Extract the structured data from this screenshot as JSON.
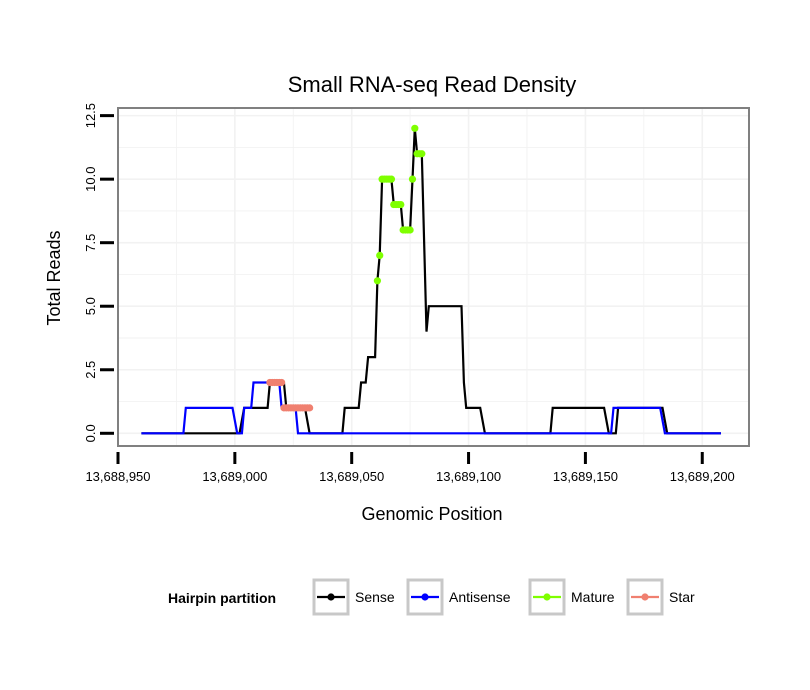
{
  "chart_data": {
    "type": "line",
    "title": "Small RNA-seq Read Density",
    "xlabel": "Genomic Position",
    "ylabel": "Total Reads",
    "xlim": [
      13688950,
      13689220
    ],
    "ylim": [
      -0.5,
      12.8
    ],
    "x_ticks": [
      13688950,
      13689000,
      13689050,
      13689100,
      13689150,
      13689200
    ],
    "x_tick_labels": [
      "13,688,950",
      "13,689,000",
      "13,689,050",
      "13,689,100",
      "13,689,150",
      "13,689,200"
    ],
    "y_ticks": [
      0,
      2.5,
      5,
      7.5,
      10,
      12.5
    ],
    "y_tick_labels": [
      "0.0",
      "2.5",
      "5.0",
      "7.5",
      "10.0",
      "12.5"
    ],
    "grid": true,
    "legend_position": "bottom",
    "legend_title": "Hairpin partition",
    "colors": {
      "Sense": "#000000",
      "Antisense": "#0000ff",
      "Mature": "#7fff00",
      "Star": "#f08070",
      "panel_border": "#808080",
      "grid": "#f2f2f2"
    },
    "series": [
      {
        "name": "Sense",
        "kind": "line",
        "points": [
          [
            13688960,
            0
          ],
          [
            13689002,
            0
          ],
          [
            13689004,
            1
          ],
          [
            13689014,
            1
          ],
          [
            13689015,
            2
          ],
          [
            13689021,
            2
          ],
          [
            13689022,
            1
          ],
          [
            13689030,
            1
          ],
          [
            13689032,
            0
          ],
          [
            13689046,
            0
          ],
          [
            13689047,
            1
          ],
          [
            13689053,
            1
          ],
          [
            13689054,
            2
          ],
          [
            13689056,
            2
          ],
          [
            13689057,
            3
          ],
          [
            13689060,
            3
          ],
          [
            13689061,
            6
          ],
          [
            13689062,
            7
          ],
          [
            13689063,
            10
          ],
          [
            13689067,
            10
          ],
          [
            13689068,
            9
          ],
          [
            13689071,
            9
          ],
          [
            13689072,
            8
          ],
          [
            13689075,
            8
          ],
          [
            13689076,
            10
          ],
          [
            13689077,
            12
          ],
          [
            13689078,
            11
          ],
          [
            13689080,
            11
          ],
          [
            13689082,
            4
          ],
          [
            13689083,
            5
          ],
          [
            13689097,
            5
          ],
          [
            13689098,
            2
          ],
          [
            13689099,
            1
          ],
          [
            13689105,
            1
          ],
          [
            13689107,
            0
          ],
          [
            13689135,
            0
          ],
          [
            13689136,
            1
          ],
          [
            13689158,
            1
          ],
          [
            13689160,
            0
          ],
          [
            13689163,
            0
          ],
          [
            13689164,
            1
          ],
          [
            13689183,
            1
          ],
          [
            13689185,
            0
          ],
          [
            13689208,
            0
          ]
        ]
      },
      {
        "name": "Antisense",
        "kind": "line",
        "points": [
          [
            13688960,
            0
          ],
          [
            13688978,
            0
          ],
          [
            13688979,
            1
          ],
          [
            13688999,
            1
          ],
          [
            13689001,
            0
          ],
          [
            13689003,
            0
          ],
          [
            13689004,
            1
          ],
          [
            13689007,
            1
          ],
          [
            13689008,
            2
          ],
          [
            13689019,
            2
          ],
          [
            13689020,
            1
          ],
          [
            13689026,
            1
          ],
          [
            13689027,
            0
          ],
          [
            13689161,
            0
          ],
          [
            13689162,
            1
          ],
          [
            13689182,
            1
          ],
          [
            13689184,
            0
          ],
          [
            13689208,
            0
          ]
        ]
      },
      {
        "name": "Mature",
        "kind": "points",
        "points": [
          [
            13689061,
            6
          ],
          [
            13689062,
            7
          ],
          [
            13689063,
            10
          ],
          [
            13689064,
            10
          ],
          [
            13689065,
            10
          ],
          [
            13689066,
            10
          ],
          [
            13689067,
            10
          ],
          [
            13689068,
            9
          ],
          [
            13689069,
            9
          ],
          [
            13689070,
            9
          ],
          [
            13689071,
            9
          ],
          [
            13689072,
            8
          ],
          [
            13689073,
            8
          ],
          [
            13689074,
            8
          ],
          [
            13689075,
            8
          ],
          [
            13689076,
            10
          ],
          [
            13689077,
            12
          ],
          [
            13689078,
            11
          ],
          [
            13689079,
            11
          ],
          [
            13689080,
            11
          ]
        ]
      },
      {
        "name": "Star",
        "kind": "points",
        "points": [
          [
            13689015,
            2
          ],
          [
            13689016,
            2
          ],
          [
            13689017,
            2
          ],
          [
            13689018,
            2
          ],
          [
            13689019,
            2
          ],
          [
            13689020,
            2
          ],
          [
            13689021,
            1
          ],
          [
            13689022,
            1
          ],
          [
            13689023,
            1
          ],
          [
            13689024,
            1
          ],
          [
            13689025,
            1
          ],
          [
            13689026,
            1
          ],
          [
            13689027,
            1
          ],
          [
            13689028,
            1
          ],
          [
            13689029,
            1
          ],
          [
            13689030,
            1
          ],
          [
            13689031,
            1
          ],
          [
            13689032,
            1
          ]
        ]
      }
    ],
    "legend": [
      {
        "label": "Sense",
        "color": "#000000"
      },
      {
        "label": "Antisense",
        "color": "#0000ff"
      },
      {
        "label": "Mature",
        "color": "#7fff00"
      },
      {
        "label": "Star",
        "color": "#f08070"
      }
    ]
  }
}
